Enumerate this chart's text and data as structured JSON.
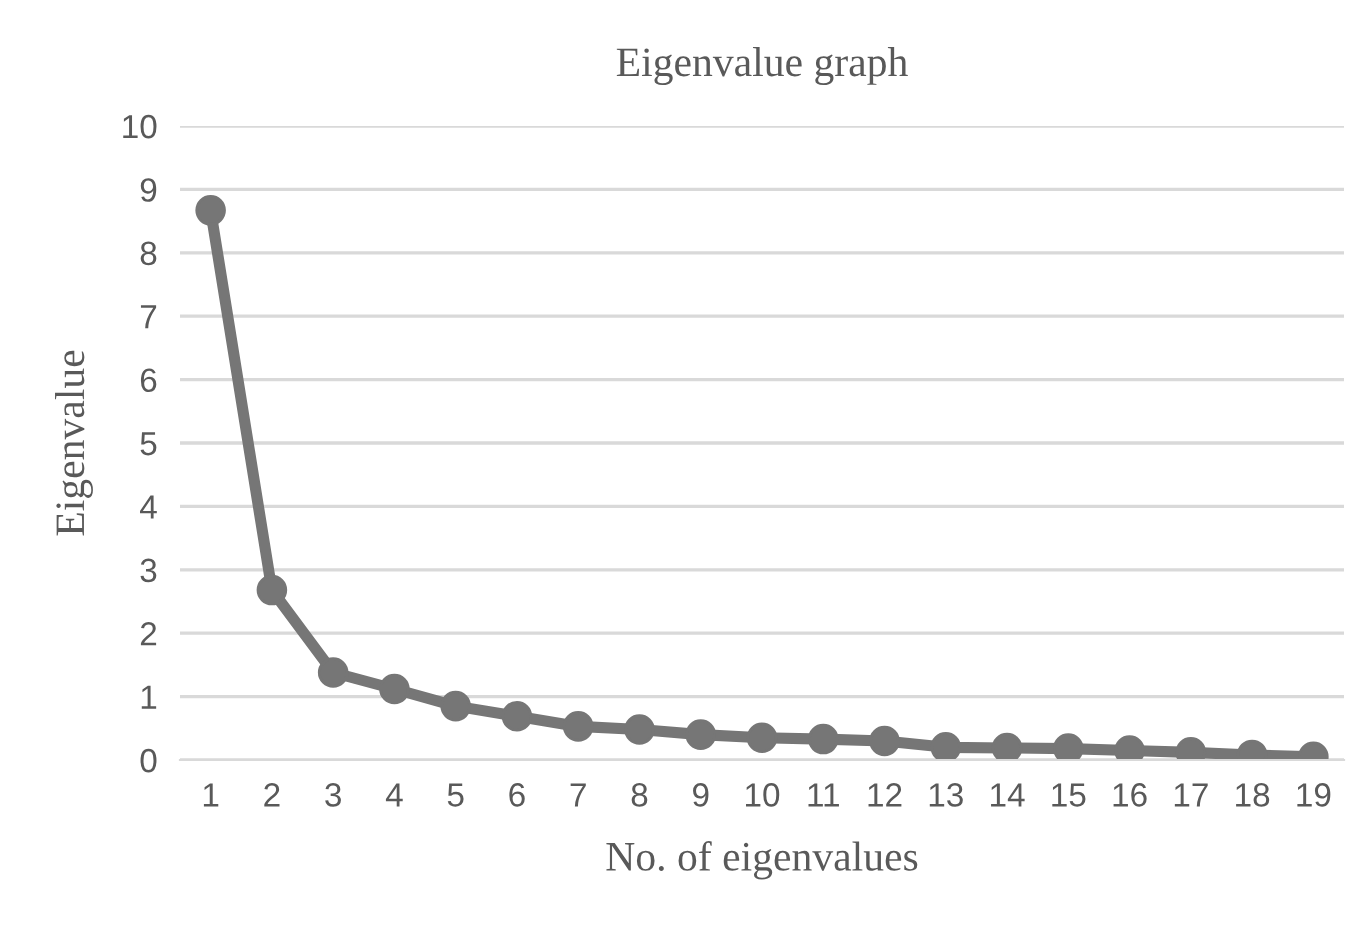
{
  "chart_data": {
    "type": "line",
    "title": "Eigenvalue graph",
    "xlabel": "No. of eigenvalues",
    "ylabel": "Eigenvalue",
    "categories": [
      "1",
      "2",
      "3",
      "4",
      "5",
      "6",
      "7",
      "8",
      "9",
      "10",
      "11",
      "12",
      "13",
      "14",
      "15",
      "16",
      "17",
      "18",
      "19"
    ],
    "series": [
      {
        "color": "#767676",
        "values": [
          8.67,
          2.68,
          1.38,
          1.12,
          0.85,
          0.69,
          0.53,
          0.48,
          0.4,
          0.35,
          0.33,
          0.3,
          0.2,
          0.19,
          0.18,
          0.15,
          0.12,
          0.08,
          0.05
        ]
      }
    ],
    "ylim": [
      0,
      10
    ],
    "yticks": [
      0,
      1,
      2,
      3,
      4,
      5,
      6,
      7,
      8,
      9,
      10
    ],
    "grid": "y",
    "marker": "circle",
    "line_style": "solid"
  }
}
